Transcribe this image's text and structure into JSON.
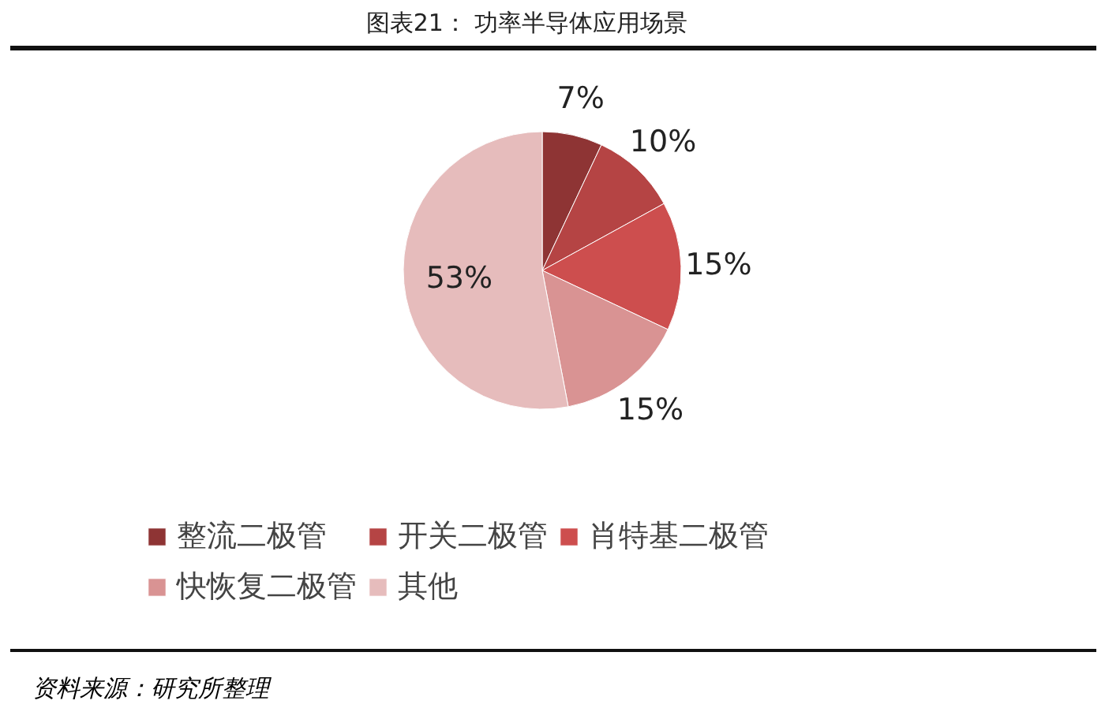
{
  "chart_data": {
    "type": "pie",
    "title": "图表21：        功率半导体应用场景",
    "categories": [
      "整流二极管",
      "开关二极管",
      "肖特基二极管",
      "快恢复二极管",
      "其他"
    ],
    "values": [
      7,
      10,
      15,
      15,
      53
    ],
    "colors": [
      "#8e3434",
      "#b54444",
      "#cd4e4e",
      "#d99393",
      "#e6bcbc"
    ],
    "value_labels": [
      "7%",
      "10%",
      "15%",
      "15%",
      "53%"
    ],
    "legend": "bottom",
    "annotations": [
      "资料来源：研究所整理"
    ]
  }
}
